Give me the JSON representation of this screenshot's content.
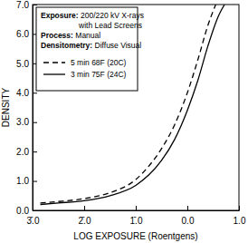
{
  "chart_data": {
    "type": "line",
    "x_label": "LOG EXPOSURE (Roentgens)",
    "y_label": "DENSITY",
    "annotations": [
      {
        "label": "Exposure:",
        "text": "200/220 kV X-rays"
      },
      {
        "text": "with Lead Screens"
      },
      {
        "label": "Process:",
        "text": "Manual"
      },
      {
        "label": "Densitometry:",
        "text": "Diffuse Visual"
      }
    ],
    "legend": "upper left",
    "xlim": [
      -3,
      1
    ],
    "xticks": [
      {
        "value": -3,
        "label": "3̄.0"
      },
      {
        "value": -2,
        "label": "2̄.0"
      },
      {
        "value": -1,
        "label": "1̄.0"
      },
      {
        "value": 0,
        "label": "0.0"
      },
      {
        "value": 1,
        "label": "1.0"
      }
    ],
    "ylim": [
      0,
      7
    ],
    "yticks": [
      {
        "value": 0,
        "label": "0.0"
      },
      {
        "value": 1,
        "label": "1.0"
      },
      {
        "value": 2,
        "label": "2.0"
      },
      {
        "value": 3,
        "label": "3.0"
      },
      {
        "value": 4,
        "label": "4.0"
      },
      {
        "value": 5,
        "label": "5.0"
      },
      {
        "value": 6,
        "label": "6.0"
      },
      {
        "value": 7,
        "label": "7.0"
      }
    ],
    "series": [
      {
        "name": "5 min 68F (20C)",
        "color": "#000000",
        "line_style": "dashed",
        "x": [
          -2.85,
          -2.5,
          -2,
          -1.5,
          -1,
          -0.75,
          -0.5,
          -0.25,
          0,
          0.2,
          0.4,
          0.55
        ],
        "values": [
          0.25,
          0.3,
          0.4,
          0.6,
          1.05,
          1.5,
          2.1,
          2.9,
          4.0,
          5.1,
          6.3,
          7.0
        ]
      },
      {
        "name": "3 min 75F (24C)",
        "color": "#000000",
        "line_style": "solid",
        "x": [
          -2.85,
          -2.5,
          -2,
          -1.5,
          -1,
          -0.75,
          -0.5,
          -0.25,
          0,
          0.2,
          0.4,
          0.6,
          0.72
        ],
        "values": [
          0.2,
          0.25,
          0.33,
          0.5,
          0.85,
          1.2,
          1.7,
          2.4,
          3.4,
          4.4,
          5.6,
          6.6,
          7.0
        ]
      }
    ]
  }
}
